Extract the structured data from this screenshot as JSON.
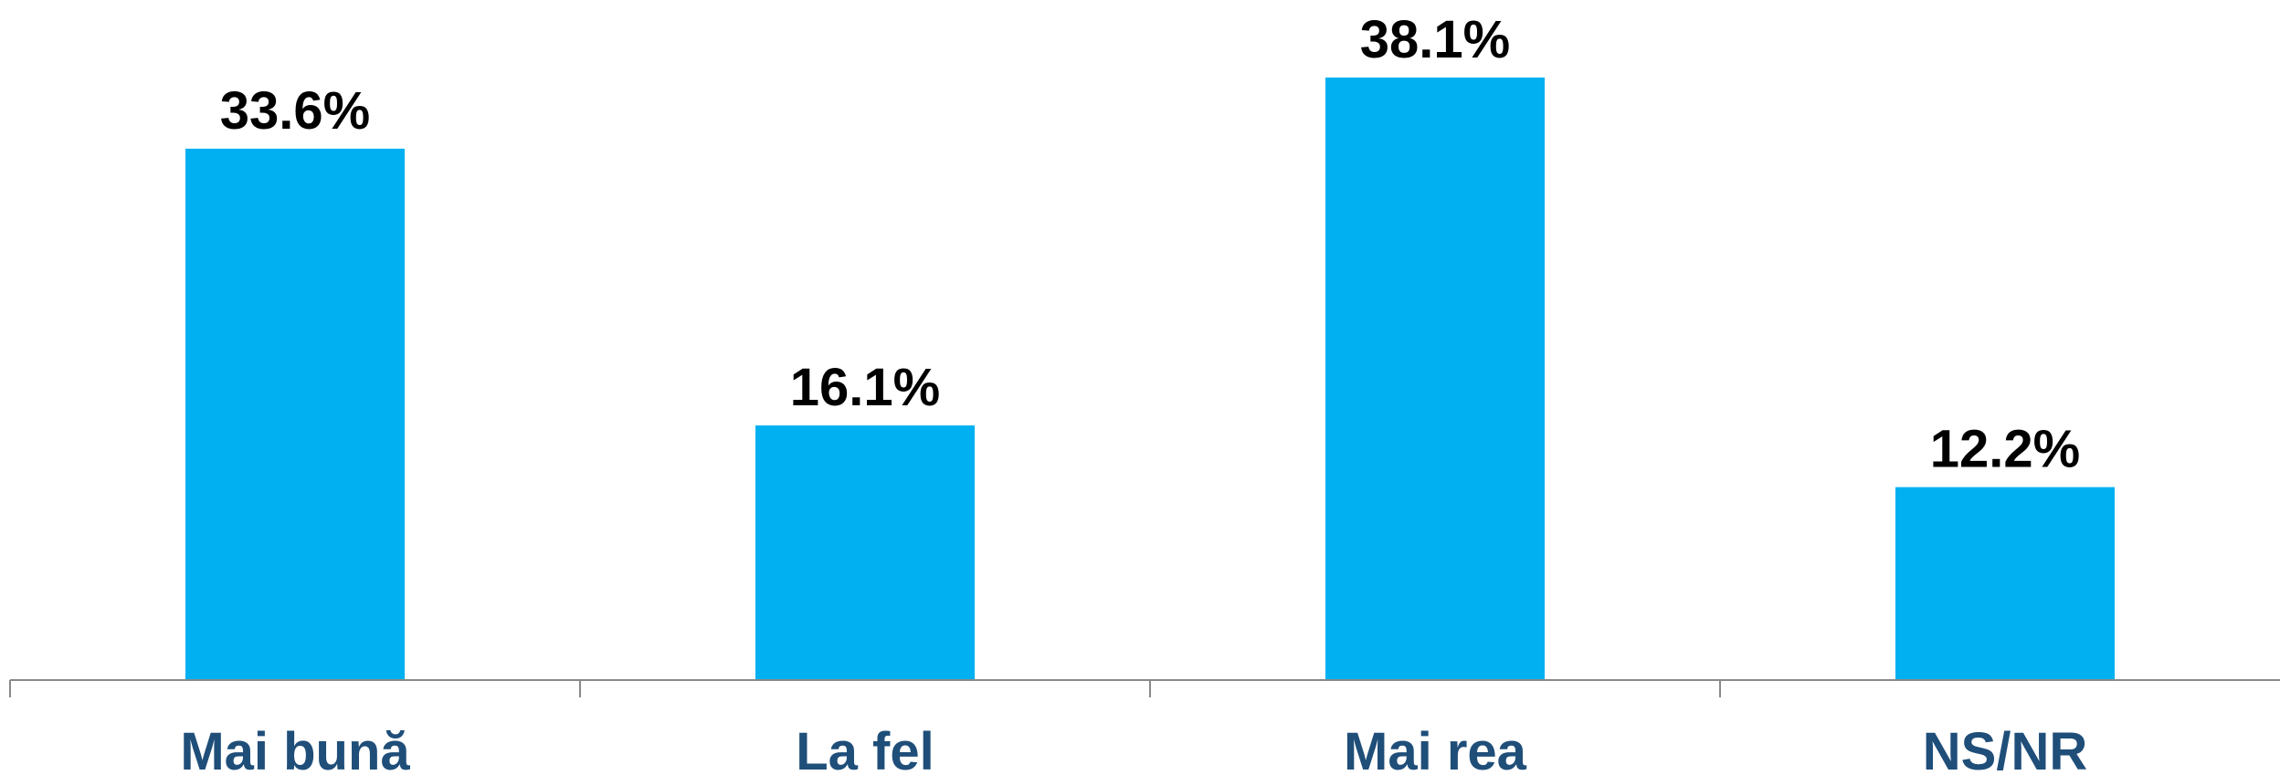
{
  "chart_data": {
    "type": "bar",
    "categories": [
      "Mai bună",
      "La fel",
      "Mai rea",
      "NS/NR"
    ],
    "values": [
      33.6,
      16.1,
      38.1,
      12.2
    ],
    "value_labels": [
      "33.6%",
      "16.1%",
      "38.1%",
      "12.2%"
    ],
    "color": "#00b0f0",
    "ylim": [
      0,
      40
    ]
  }
}
